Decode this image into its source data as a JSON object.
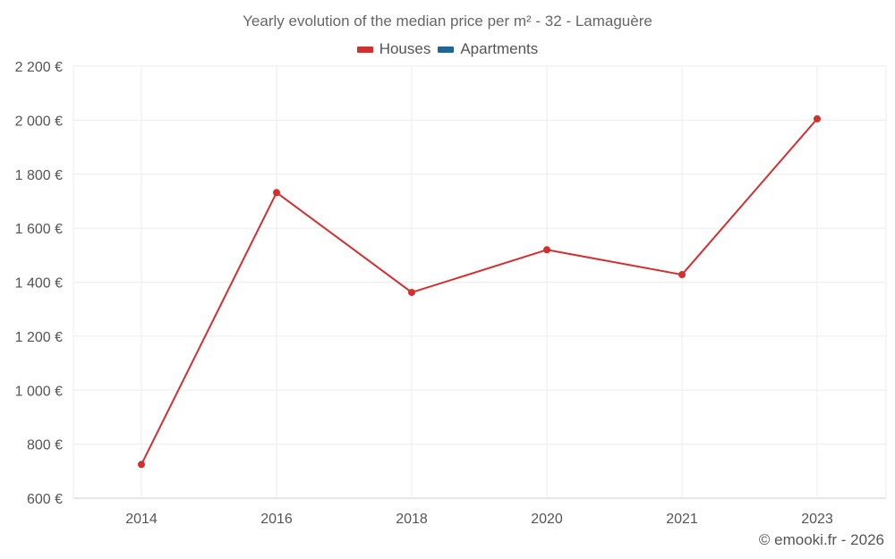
{
  "chart_data": {
    "type": "line",
    "title": "Yearly evolution of the median price per m² - 32 - Lamaguère",
    "categories": [
      "2014",
      "2016",
      "2018",
      "2020",
      "2021",
      "2023"
    ],
    "series": [
      {
        "name": "Houses",
        "color": "#d32f2f",
        "values": [
          725,
          1732,
          1362,
          1520,
          1428,
          2005
        ]
      },
      {
        "name": "Apartments",
        "color": "#1f6696",
        "values": [
          null,
          null,
          null,
          null,
          null,
          null
        ]
      }
    ],
    "ylim": [
      600,
      2200
    ],
    "yticks": [
      600,
      800,
      1000,
      1200,
      1400,
      1600,
      1800,
      2000,
      2200
    ],
    "ytick_labels": [
      "600 €",
      "800 €",
      "1 000 €",
      "1 200 €",
      "1 400 €",
      "1 600 €",
      "1 800 €",
      "2 000 €",
      "2 200 €"
    ],
    "xlabel": "",
    "ylabel": "",
    "grid": true,
    "legend_position": "top-center"
  },
  "credit": "© emooki.fr - 2026"
}
